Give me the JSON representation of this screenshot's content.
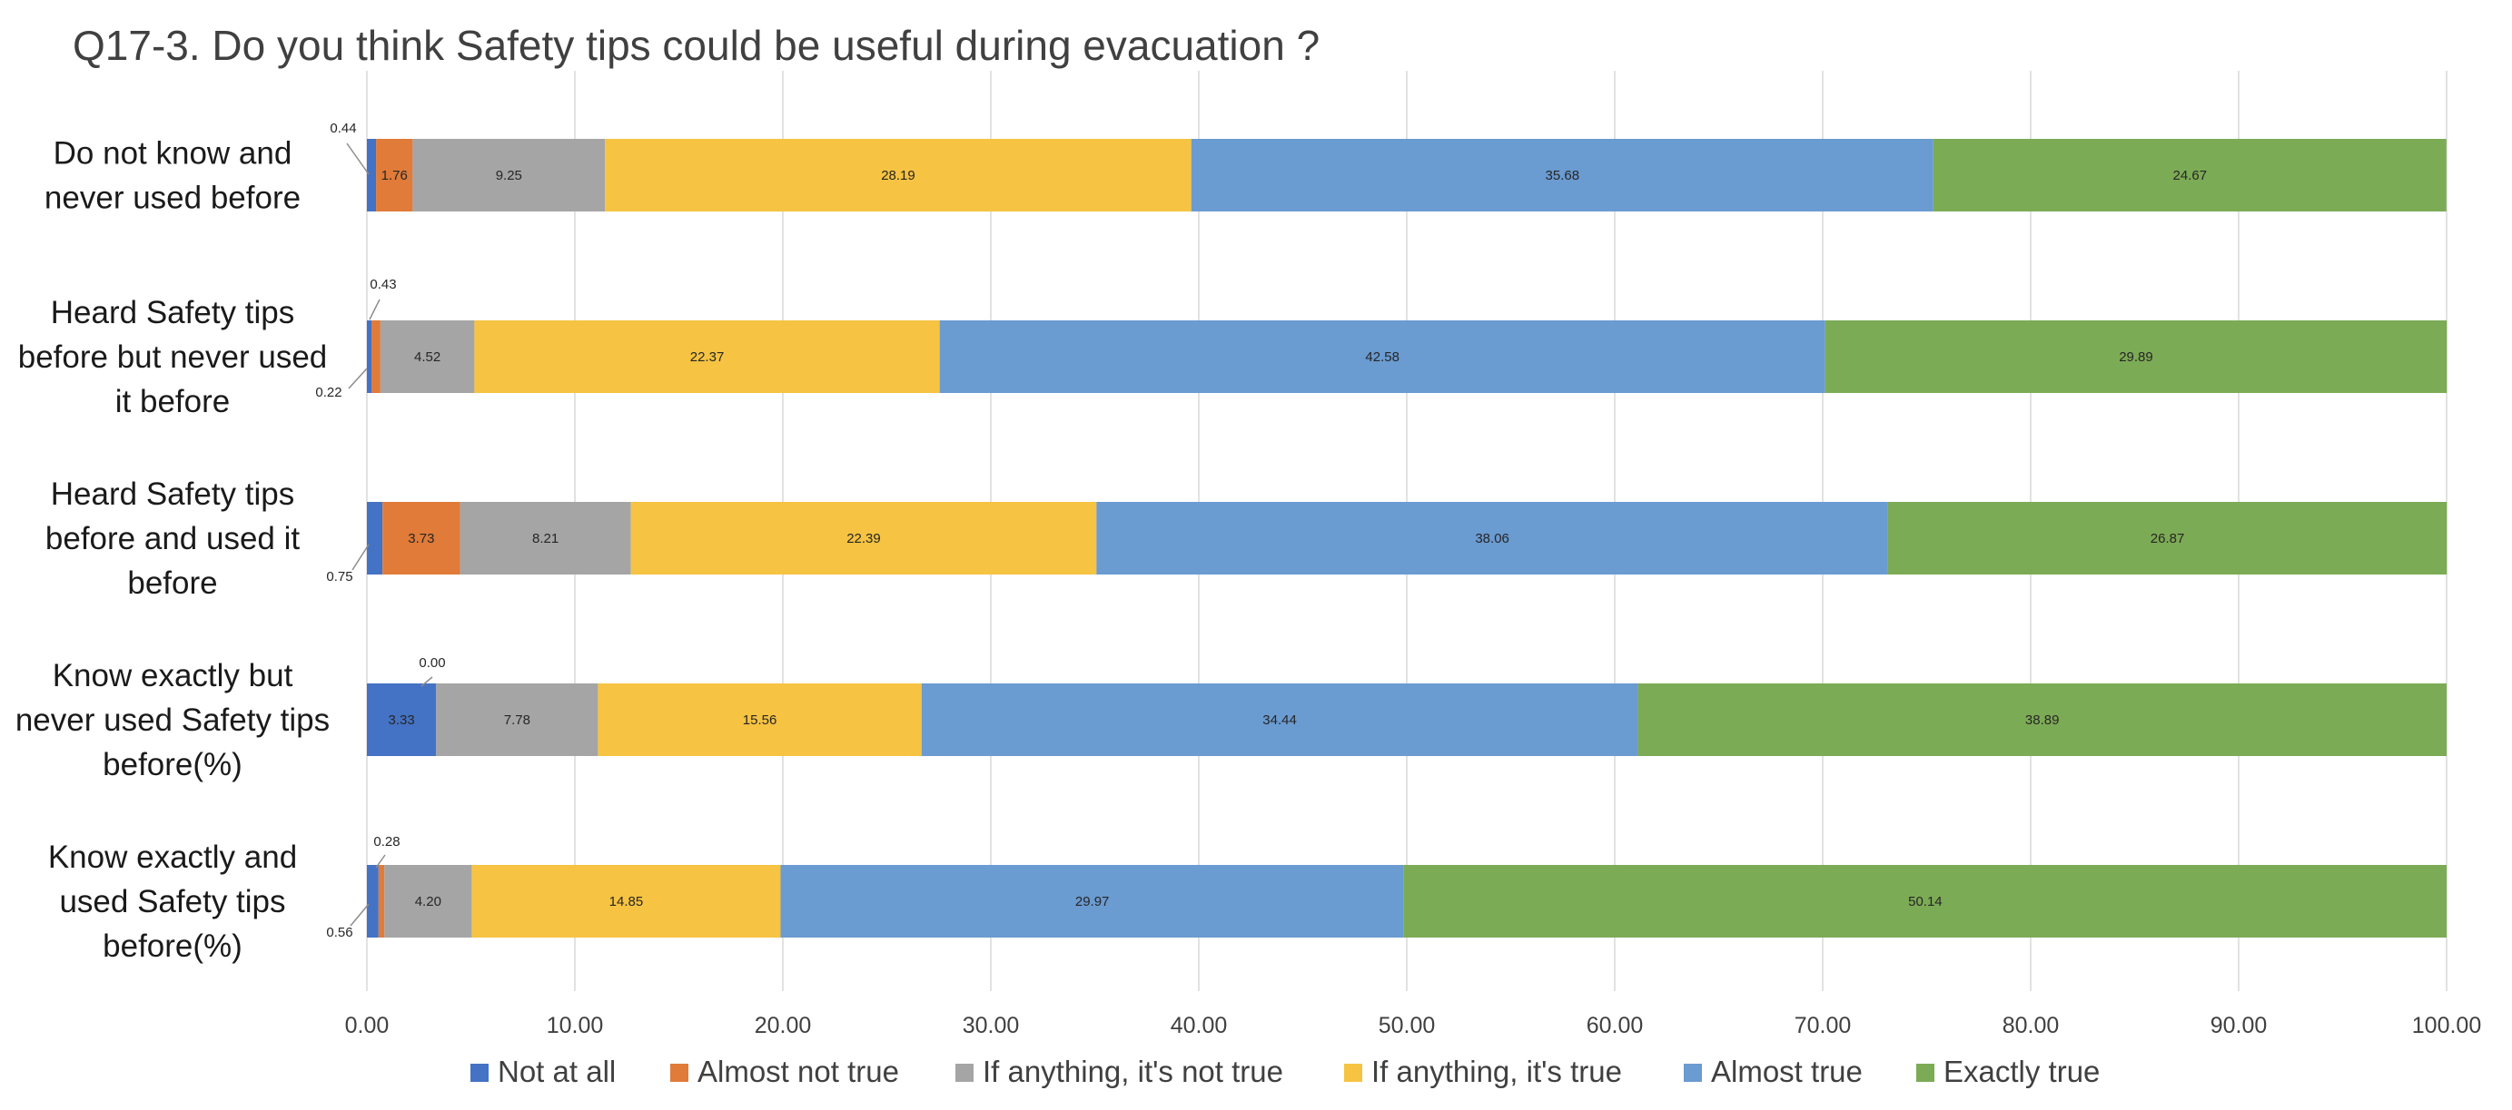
{
  "chart_data": {
    "type": "bar",
    "orientation": "horizontal",
    "stacked": true,
    "title": "Q17-3. Do you think Safety tips could be useful during evacuation ?",
    "categories": [
      [
        "Do not know and",
        "never used before"
      ],
      [
        "Heard Safety tips",
        "before but never used",
        "it before"
      ],
      [
        "Heard Safety tips",
        "before and used it",
        "before"
      ],
      [
        "Know exactly but",
        "never used Safety tips",
        "before(%)"
      ],
      [
        "Know exactly and",
        "used Safety tips",
        "before(%)"
      ]
    ],
    "series": [
      {
        "name": "Not at all",
        "color": "#4472c4",
        "values": [
          0.44,
          0.22,
          0.75,
          3.33,
          0.56
        ],
        "labels": [
          "0.44",
          "0.22",
          "0.75",
          "3.33",
          "0.56"
        ]
      },
      {
        "name": "Almost not true",
        "color": "#e07b39",
        "values": [
          1.76,
          0.43,
          3.73,
          0.0,
          0.28
        ],
        "labels": [
          "1.76",
          "0.43",
          "3.73",
          "0.00",
          "0.28"
        ]
      },
      {
        "name": "If anything, it's not true",
        "color": "#a5a5a5",
        "values": [
          9.25,
          4.52,
          8.21,
          7.78,
          4.2
        ],
        "labels": [
          "9.25",
          "4.52",
          "8.21",
          "7.78",
          "4.20"
        ]
      },
      {
        "name": "If anything, it's true",
        "color": "#f6c342",
        "values": [
          28.19,
          22.37,
          22.39,
          15.56,
          14.85
        ],
        "labels": [
          "28.19",
          "22.37",
          "22.39",
          "15.56",
          "14.85"
        ]
      },
      {
        "name": "Almost true",
        "color": "#6a9bd1",
        "values": [
          35.68,
          42.58,
          38.06,
          34.44,
          29.97
        ],
        "labels": [
          "35.68",
          "42.58",
          "38.06",
          "34.44",
          "29.97"
        ]
      },
      {
        "name": "Exactly true",
        "color": "#7cab55",
        "values": [
          24.67,
          29.89,
          26.87,
          38.89,
          50.14
        ],
        "labels": [
          "24.67",
          "29.89",
          "26.87",
          "38.89",
          "50.14"
        ]
      }
    ],
    "xlim": [
      0,
      100
    ],
    "xticks": [
      "0.00",
      "10.00",
      "20.00",
      "30.00",
      "40.00",
      "50.00",
      "60.00",
      "70.00",
      "80.00",
      "90.00",
      "100.00"
    ],
    "grid": true,
    "legend_position": "bottom"
  }
}
